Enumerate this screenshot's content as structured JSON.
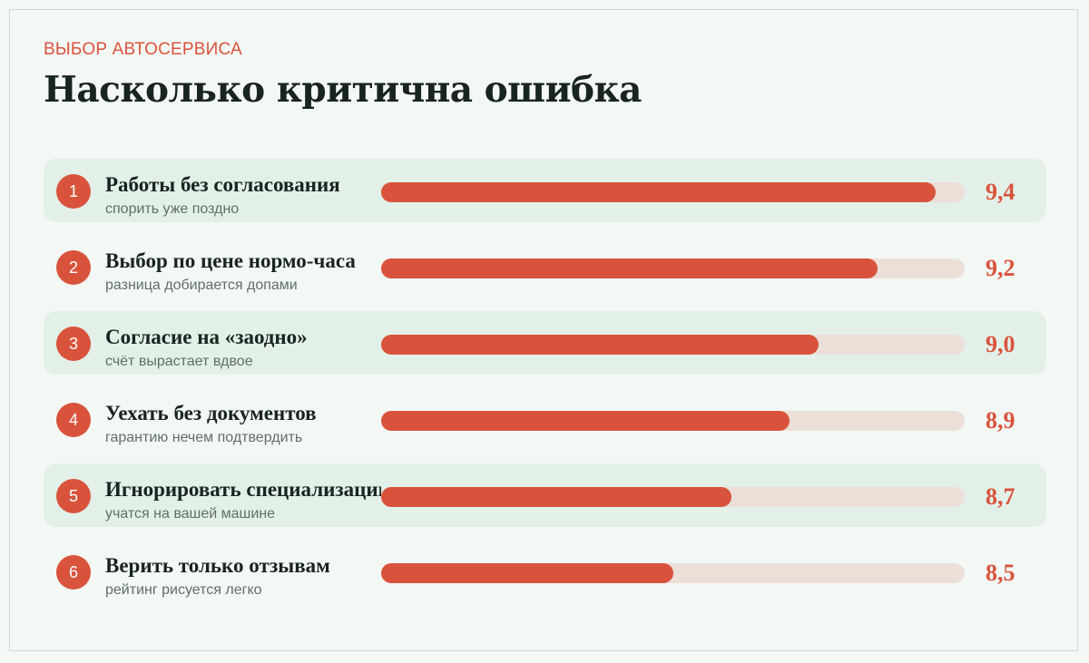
{
  "header": {
    "kicker": "ВЫБОР АВТОСЕРВИСА",
    "title": "Насколько критична ошибка"
  },
  "colors": {
    "accent": "#d9533c",
    "track": "#ecdfd8",
    "row_alt": "#e3f0e8",
    "text": "#17241f"
  },
  "chart_data": {
    "type": "bar",
    "orientation": "horizontal",
    "title": "Насколько критична ошибка",
    "categories": [
      "Работы без согласования",
      "Выбор по цене нормо-часа",
      "Согласие на «заодно»",
      "Уехать без документов",
      "Игнорировать специализацию",
      "Верить только отзывам"
    ],
    "values": [
      9.4,
      9.2,
      9.0,
      8.9,
      8.7,
      8.5
    ],
    "xlim": [
      7.5,
      9.5
    ],
    "rows": [
      {
        "rank": "1",
        "label": "Работы без согласования",
        "sub": "спорить уже поздно",
        "value": 9.4,
        "value_label": "9,4"
      },
      {
        "rank": "2",
        "label": "Выбор по цене нормо-часа",
        "sub": "разница добирается допами",
        "value": 9.2,
        "value_label": "9,2"
      },
      {
        "rank": "3",
        "label": "Согласие на «заодно»",
        "sub": "счёт вырастает вдвое",
        "value": 9.0,
        "value_label": "9,0"
      },
      {
        "rank": "4",
        "label": "Уехать без документов",
        "sub": "гарантию нечем подтвердить",
        "value": 8.9,
        "value_label": "8,9"
      },
      {
        "rank": "5",
        "label": "Игнорировать специализацию",
        "sub": "учатся на вашей машине",
        "value": 8.7,
        "value_label": "8,7"
      },
      {
        "rank": "6",
        "label": "Верить только отзывам",
        "sub": "рейтинг рисуется легко",
        "value": 8.5,
        "value_label": "8,5"
      }
    ]
  }
}
